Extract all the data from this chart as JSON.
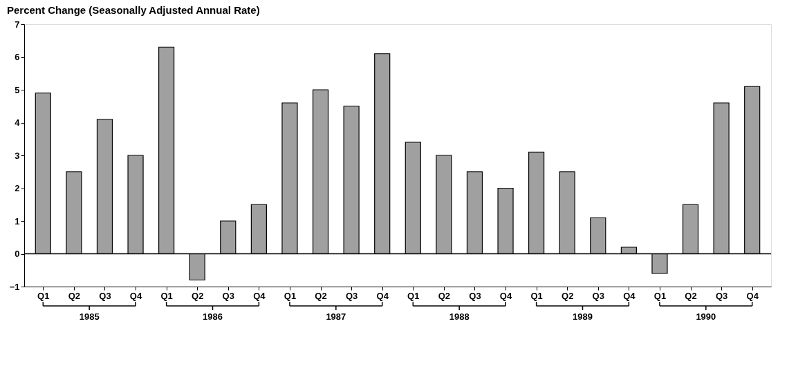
{
  "chart_data": {
    "type": "bar",
    "title": "Percent Change (Seasonally Adjusted Annual Rate)",
    "categories": [
      "Q1",
      "Q2",
      "Q3",
      "Q4",
      "Q1",
      "Q2",
      "Q3",
      "Q4",
      "Q1",
      "Q2",
      "Q3",
      "Q4",
      "Q1",
      "Q2",
      "Q3",
      "Q4",
      "Q1",
      "Q2",
      "Q3",
      "Q4",
      "Q1",
      "Q2",
      "Q3",
      "Q4"
    ],
    "values": [
      4.9,
      2.5,
      4.1,
      3.0,
      6.3,
      -0.8,
      1.0,
      1.5,
      4.6,
      5.0,
      4.5,
      6.1,
      3.4,
      3.0,
      2.5,
      2.0,
      3.1,
      2.5,
      1.1,
      0.2,
      -0.6,
      1.5,
      4.6,
      5.1
    ],
    "color": "#a0a0a0",
    "ylim": [
      -1,
      7
    ],
    "yticks": [
      -1,
      0,
      1,
      2,
      3,
      4,
      5,
      6,
      7
    ],
    "grid": false,
    "ref_lines": [
      {
        "axis": "y",
        "value": 0
      }
    ],
    "annotations": [
      "1985",
      "1986",
      "1987",
      "1988",
      "1989",
      "1990"
    ]
  }
}
